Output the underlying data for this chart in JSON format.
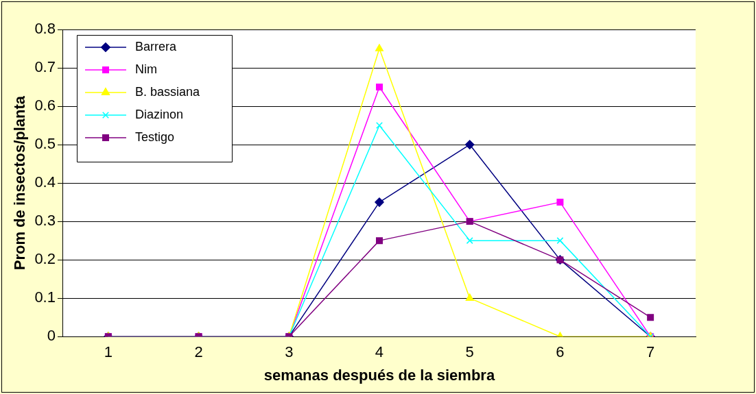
{
  "chart_data": {
    "type": "line",
    "xlabel": "semanas después de la siembra",
    "ylabel": "Prom de insectos/planta",
    "categories": [
      "1",
      "2",
      "3",
      "4",
      "5",
      "6",
      "7"
    ],
    "series": [
      {
        "name": "Barrera",
        "color": "#000080",
        "marker": "diamond",
        "values": [
          0,
          0,
          0,
          0.35,
          0.5,
          0.2,
          0
        ]
      },
      {
        "name": "Nim",
        "color": "#ff00ff",
        "marker": "square",
        "values": [
          0,
          0,
          0,
          0.65,
          0.3,
          0.35,
          0
        ]
      },
      {
        "name": "B. bassiana",
        "color": "#ffff00",
        "marker": "triangle",
        "values": [
          0,
          0,
          0,
          0.75,
          0.1,
          0,
          0
        ]
      },
      {
        "name": "Diazinon",
        "color": "#00ffff",
        "marker": "cross",
        "values": [
          0,
          0,
          0,
          0.55,
          0.25,
          0.25,
          0
        ]
      },
      {
        "name": "Testigo",
        "color": "#800080",
        "marker": "square",
        "values": [
          0,
          0,
          0,
          0.25,
          0.3,
          0.2,
          0.05
        ]
      }
    ],
    "ylim": [
      0,
      0.8
    ],
    "yticks": [
      0,
      0.1,
      0.2,
      0.3,
      0.4,
      0.5,
      0.6,
      0.7,
      0.8
    ],
    "grid": "y",
    "legend": "top left",
    "line_style": "solid"
  }
}
